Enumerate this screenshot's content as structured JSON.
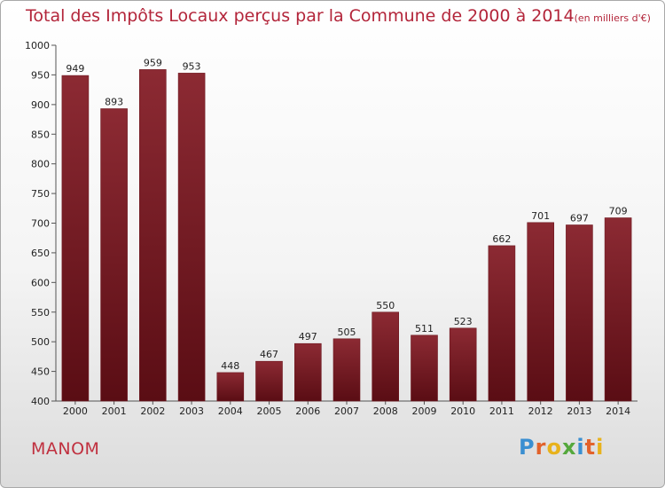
{
  "title": "Total des Impôts Locaux perçus par la Commune de 2000 à 2014",
  "title_unit": "(en milliers d'€)",
  "commune": "MANOM",
  "logo": {
    "letters": [
      "P",
      "r",
      "o",
      "x",
      "i",
      "t",
      "i"
    ],
    "colors": [
      "#3a8fd1",
      "#e2622b",
      "#e8b21c",
      "#55a83c",
      "#3a8fd1",
      "#e2622b",
      "#e8b21c"
    ]
  },
  "colors": {
    "bar_top": "#8c2a33",
    "bar_bottom": "#5a0d14",
    "accent": "#b3253a"
  },
  "chart_data": {
    "type": "bar",
    "title": "Total des Impôts Locaux perçus par la Commune de 2000 à 2014",
    "categories": [
      "2000",
      "2001",
      "2002",
      "2003",
      "2004",
      "2005",
      "2006",
      "2007",
      "2008",
      "2009",
      "2010",
      "2011",
      "2012",
      "2013",
      "2014"
    ],
    "values": [
      949,
      893,
      959,
      953,
      448,
      467,
      497,
      505,
      550,
      511,
      523,
      662,
      701,
      697,
      709
    ],
    "ylim": [
      400,
      1000
    ],
    "yticks": [
      400,
      450,
      500,
      550,
      600,
      650,
      700,
      750,
      800,
      850,
      900,
      950,
      1000
    ],
    "grid": false,
    "xlabel": "",
    "ylabel": ""
  }
}
